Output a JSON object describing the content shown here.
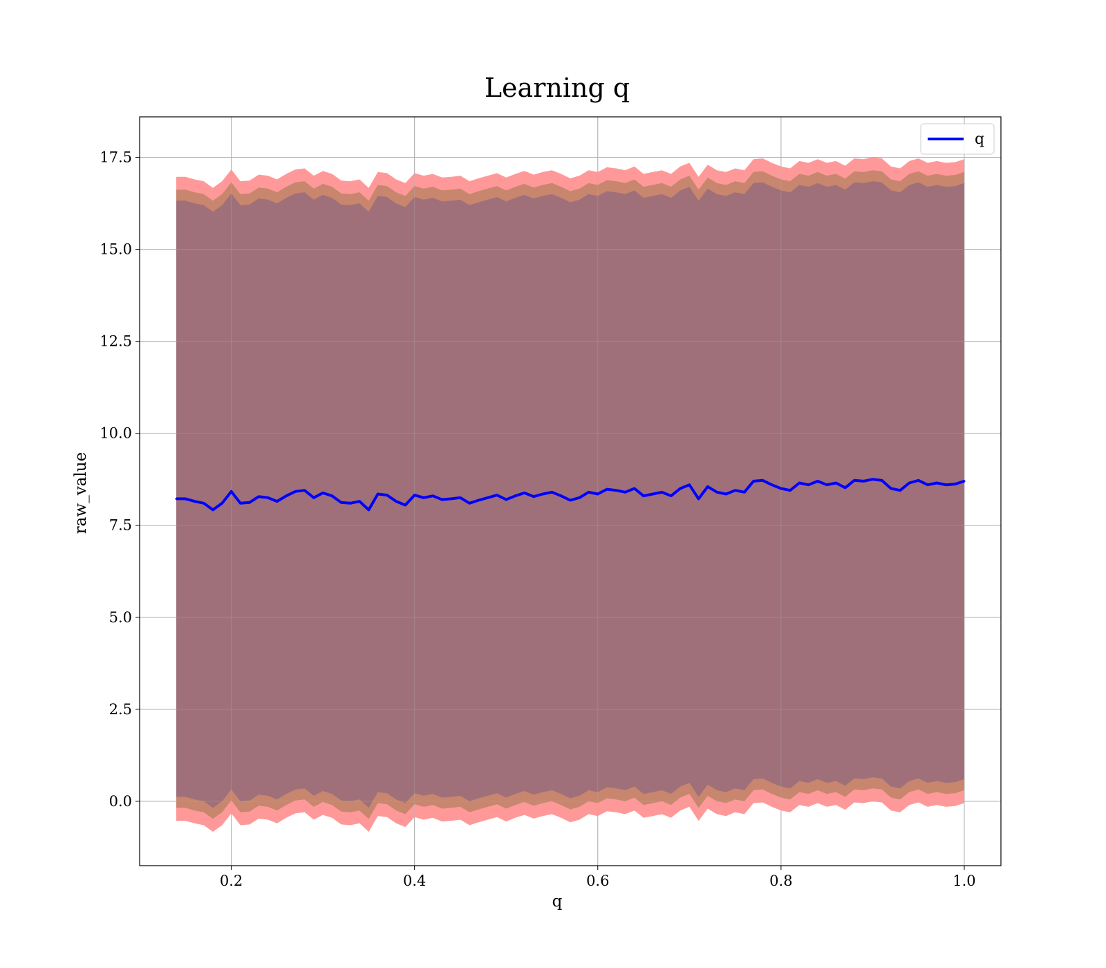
{
  "chart_data": {
    "type": "line",
    "title": "Learning q",
    "xlabel": "q",
    "ylabel": "raw_value",
    "xlim": [
      0.1,
      1.04
    ],
    "ylim": [
      -1.75,
      18.6
    ],
    "xticks": [
      0.2,
      0.4,
      0.6,
      0.8,
      1.0
    ],
    "xtick_labels": [
      "0.2",
      "0.4",
      "0.6",
      "0.8",
      "1.0"
    ],
    "yticks": [
      0.0,
      2.5,
      5.0,
      7.5,
      10.0,
      12.5,
      15.0,
      17.5
    ],
    "ytick_labels": [
      "0.0",
      "2.5",
      "5.0",
      "7.5",
      "10.0",
      "12.5",
      "15.0",
      "17.5"
    ],
    "grid": true,
    "legend": {
      "position": "top-right",
      "entries": [
        "q"
      ]
    },
    "colors": {
      "line": "#0000ff",
      "band_outer": "#ff9999",
      "band_middle": "#c8866e",
      "band_inner": "#a0707a",
      "grid": "#b0b0b0"
    },
    "series": [
      {
        "name": "q",
        "x": [
          0.14,
          0.15,
          0.16,
          0.17,
          0.18,
          0.19,
          0.2,
          0.21,
          0.22,
          0.23,
          0.24,
          0.25,
          0.26,
          0.27,
          0.28,
          0.29,
          0.3,
          0.31,
          0.32,
          0.33,
          0.34,
          0.35,
          0.36,
          0.37,
          0.38,
          0.39,
          0.4,
          0.41,
          0.42,
          0.43,
          0.44,
          0.45,
          0.46,
          0.47,
          0.48,
          0.49,
          0.5,
          0.51,
          0.52,
          0.53,
          0.54,
          0.55,
          0.56,
          0.57,
          0.58,
          0.59,
          0.6,
          0.61,
          0.62,
          0.63,
          0.64,
          0.65,
          0.66,
          0.67,
          0.68,
          0.69,
          0.7,
          0.71,
          0.72,
          0.73,
          0.74,
          0.75,
          0.76,
          0.77,
          0.78,
          0.79,
          0.8,
          0.81,
          0.82,
          0.83,
          0.84,
          0.85,
          0.86,
          0.87,
          0.88,
          0.89,
          0.9,
          0.91,
          0.92,
          0.93,
          0.94,
          0.95,
          0.96,
          0.97,
          0.98,
          0.99,
          1.0
        ],
        "y": [
          8.22,
          8.22,
          8.15,
          8.1,
          7.92,
          8.1,
          8.42,
          8.1,
          8.12,
          8.28,
          8.25,
          8.15,
          8.3,
          8.42,
          8.45,
          8.25,
          8.38,
          8.3,
          8.12,
          8.1,
          8.15,
          7.92,
          8.35,
          8.32,
          8.15,
          8.05,
          8.32,
          8.25,
          8.3,
          8.2,
          8.22,
          8.25,
          8.1,
          8.18,
          8.25,
          8.32,
          8.2,
          8.3,
          8.38,
          8.28,
          8.35,
          8.4,
          8.3,
          8.18,
          8.25,
          8.4,
          8.35,
          8.48,
          8.45,
          8.4,
          8.5,
          8.3,
          8.35,
          8.4,
          8.3,
          8.5,
          8.6,
          8.22,
          8.55,
          8.4,
          8.35,
          8.45,
          8.4,
          8.7,
          8.72,
          8.6,
          8.5,
          8.45,
          8.65,
          8.6,
          8.7,
          8.6,
          8.65,
          8.52,
          8.72,
          8.7,
          8.75,
          8.72,
          8.5,
          8.45,
          8.65,
          8.72,
          8.6,
          8.65,
          8.6,
          8.62,
          8.7
        ]
      }
    ],
    "bands": [
      {
        "color": "band_outer",
        "offset": 8.75
      },
      {
        "color": "band_middle",
        "offset": 8.4
      },
      {
        "color": "band_inner",
        "offset": 8.1
      }
    ]
  }
}
